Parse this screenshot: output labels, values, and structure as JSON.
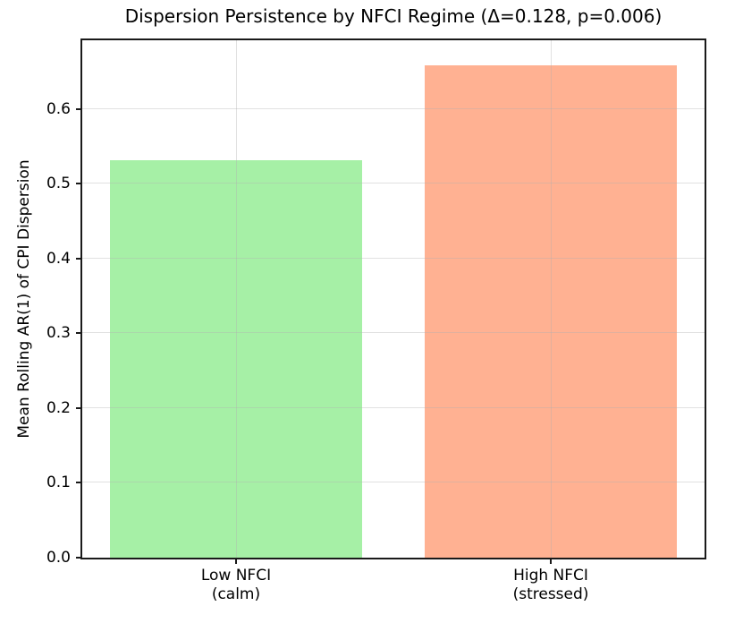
{
  "figure": {
    "background": "#ffffff"
  },
  "chart_data": {
    "type": "bar",
    "title": "Dispersion Persistence by NFCI Regime (Δ=0.128, p=0.006)",
    "ylabel": "Mean Rolling AR(1) of CPI Dispersion",
    "xlabel": "",
    "categories": [
      [
        "Low NFCI",
        "(calm)"
      ],
      [
        "High NFCI",
        "(stressed)"
      ]
    ],
    "values": [
      0.531,
      0.659
    ],
    "bar_colors": [
      "#a6f0a6",
      "#ffb192"
    ],
    "delta": "0.128",
    "p_value": "0.006",
    "ylim": [
      0,
      0.692
    ],
    "ytick_labels": [
      "0.0",
      "0.1",
      "0.2",
      "0.3",
      "0.4",
      "0.5",
      "0.6"
    ],
    "grid": true,
    "legend_position": "none"
  }
}
